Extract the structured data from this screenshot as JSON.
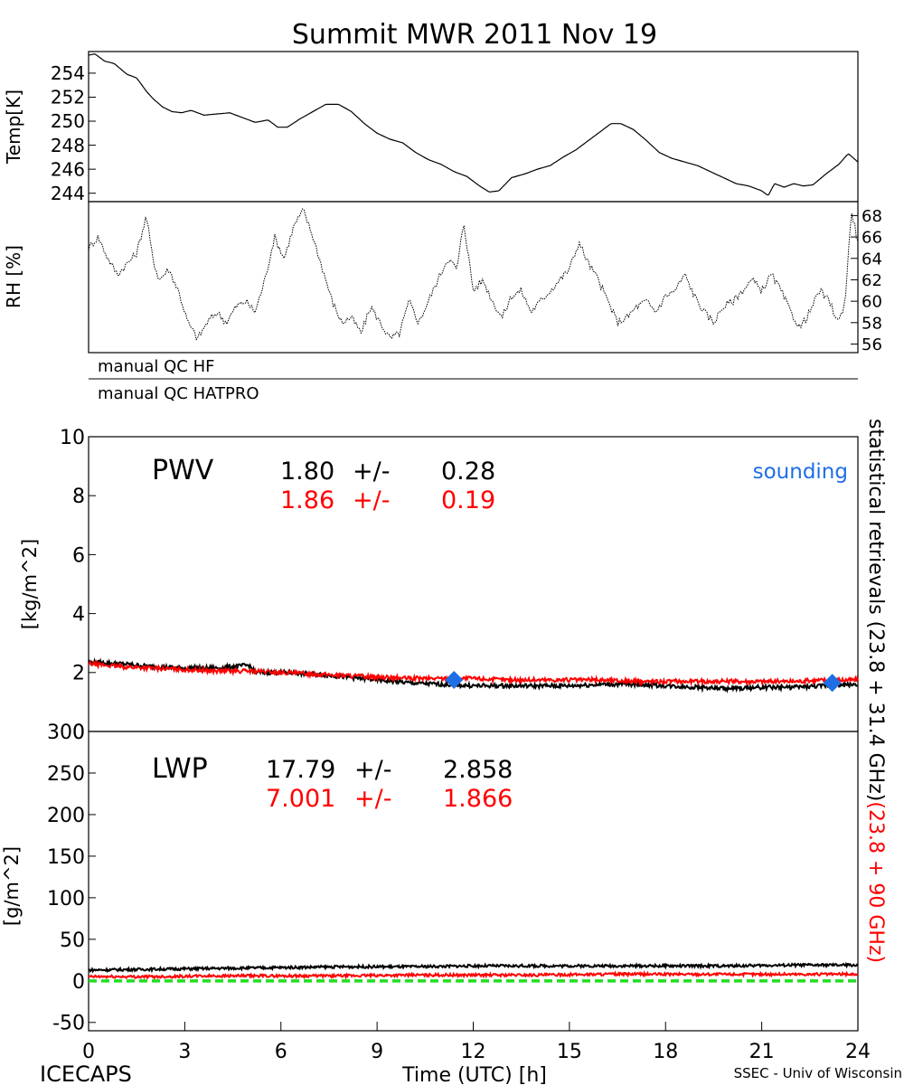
{
  "title": "Summit MWR 2011 Nov 19",
  "footer": {
    "left": "ICECAPS",
    "center": "Time (UTC) [h]",
    "right": "SSEC - Univ of Wisconsin"
  },
  "qc_labels": [
    "manual QC HF",
    "manual QC HATPRO"
  ],
  "side_label": {
    "black": "statistical retrievals (23.8 + 31.4 GHz)",
    "red": "(23.8 + 90 GHz)"
  },
  "legend": {
    "sounding": "sounding"
  },
  "colors": {
    "black_series": "#000000",
    "red_series": "#ff0000",
    "sounding": "#1e6ee6",
    "zero_line": "#22dd22"
  },
  "chart_data": [
    {
      "type": "line",
      "panel": "temperature",
      "ylabel": "Temp[K]",
      "xlim": [
        0,
        24
      ],
      "ylim": [
        243.3,
        255.8
      ],
      "yticks": [
        244,
        246,
        248,
        250,
        252,
        254
      ],
      "series": [
        {
          "color": "#000000",
          "x": [
            0,
            0.2,
            0.5,
            0.8,
            1.2,
            1.5,
            1.8,
            2.0,
            2.3,
            2.6,
            2.9,
            3.2,
            3.6,
            4.0,
            4.4,
            4.8,
            5.2,
            5.6,
            5.9,
            6.2,
            6.6,
            7.0,
            7.4,
            7.8,
            8.2,
            8.6,
            9.0,
            9.4,
            9.8,
            10.2,
            10.6,
            11.0,
            11.4,
            11.8,
            12.2,
            12.5,
            12.8,
            13.2,
            13.6,
            14.0,
            14.4,
            14.8,
            15.2,
            15.6,
            16.0,
            16.3,
            16.6,
            17.0,
            17.4,
            17.8,
            18.2,
            18.6,
            19.0,
            19.4,
            19.8,
            20.2,
            20.6,
            21.0,
            21.2,
            21.4,
            21.7,
            22.0,
            22.3,
            22.6,
            23.0,
            23.4,
            23.7,
            24.0
          ],
          "y": [
            255.5,
            255.6,
            255.0,
            254.8,
            253.9,
            253.6,
            252.5,
            251.9,
            251.2,
            250.8,
            250.7,
            250.9,
            250.5,
            250.6,
            250.7,
            250.3,
            249.9,
            250.1,
            249.5,
            249.5,
            250.2,
            250.8,
            251.4,
            251.4,
            250.8,
            249.8,
            249.0,
            248.5,
            248.2,
            247.4,
            246.8,
            246.4,
            245.8,
            245.4,
            244.6,
            244.1,
            244.2,
            245.3,
            245.6,
            246.0,
            246.3,
            247.0,
            247.6,
            248.4,
            249.2,
            249.8,
            249.8,
            249.3,
            248.4,
            247.4,
            246.9,
            246.6,
            246.3,
            245.8,
            245.3,
            244.8,
            244.6,
            244.2,
            243.8,
            244.8,
            244.5,
            244.8,
            244.6,
            244.7,
            245.6,
            246.4,
            247.3,
            246.6
          ]
        }
      ]
    },
    {
      "type": "line",
      "panel": "relative-humidity",
      "ylabel": "RH [%]",
      "xlim": [
        0,
        24
      ],
      "ylim": [
        55.2,
        69.3
      ],
      "yticks": [
        56,
        58,
        60,
        62,
        64,
        66,
        68
      ],
      "series": [
        {
          "color": "#000000",
          "x": [
            0,
            0.3,
            0.6,
            0.9,
            1.2,
            1.5,
            1.8,
            2.0,
            2.2,
            2.5,
            2.8,
            3.1,
            3.4,
            3.7,
            4.0,
            4.3,
            4.6,
            4.9,
            5.2,
            5.5,
            5.8,
            6.1,
            6.4,
            6.7,
            7.0,
            7.3,
            7.6,
            7.9,
            8.2,
            8.5,
            8.8,
            9.1,
            9.4,
            9.7,
            10.0,
            10.3,
            10.6,
            10.9,
            11.2,
            11.5,
            11.7,
            12.0,
            12.3,
            12.6,
            12.9,
            13.2,
            13.5,
            13.8,
            14.1,
            14.4,
            14.7,
            15.0,
            15.3,
            15.6,
            15.9,
            16.2,
            16.5,
            16.8,
            17.1,
            17.4,
            17.7,
            18.0,
            18.3,
            18.6,
            18.9,
            19.2,
            19.5,
            19.8,
            20.1,
            20.4,
            20.7,
            21.0,
            21.3,
            21.6,
            21.9,
            22.2,
            22.5,
            22.8,
            23.1,
            23.4,
            23.6,
            23.8,
            24.0
          ],
          "y": [
            65.0,
            66.0,
            64.0,
            62.5,
            63.5,
            64.5,
            68.0,
            64.0,
            62.0,
            63.0,
            61.0,
            58.0,
            56.5,
            58.0,
            59.0,
            58.0,
            59.5,
            60.0,
            59.0,
            62.0,
            66.0,
            64.0,
            67.0,
            68.5,
            66.0,
            63.0,
            60.0,
            58.0,
            58.5,
            57.0,
            59.5,
            58.0,
            56.5,
            57.0,
            60.0,
            58.0,
            60.0,
            62.0,
            64.0,
            63.0,
            67.5,
            61.0,
            62.0,
            60.0,
            58.5,
            60.5,
            61.0,
            59.0,
            60.0,
            61.0,
            62.0,
            63.0,
            65.5,
            63.5,
            62.0,
            60.0,
            58.0,
            58.5,
            59.5,
            60.0,
            59.0,
            60.5,
            61.0,
            62.5,
            60.5,
            59.0,
            58.0,
            59.5,
            60.0,
            61.0,
            62.0,
            61.0,
            62.5,
            61.0,
            59.0,
            57.5,
            59.0,
            61.0,
            60.0,
            58.0,
            60.0,
            68.5,
            65.5
          ]
        }
      ]
    },
    {
      "type": "line",
      "panel": "PWV",
      "label": "PWV",
      "ylabel": "[kg/m^2]",
      "xlim": [
        0,
        24
      ],
      "ylim": [
        0,
        10
      ],
      "yticks": [
        0,
        2,
        4,
        6,
        8,
        10
      ],
      "stats": [
        {
          "color": "#000000",
          "mean": "1.80",
          "pm": "+/-",
          "std": "0.28"
        },
        {
          "color": "#ff0000",
          "mean": "1.86",
          "pm": "+/-",
          "std": "0.19"
        }
      ],
      "series": [
        {
          "color": "#000000",
          "x": [
            0,
            1,
            2,
            3,
            4,
            5,
            5.2,
            6,
            7,
            8,
            9,
            10,
            11,
            12,
            13,
            14,
            15,
            16,
            17,
            18,
            19,
            20,
            21,
            22,
            23,
            24
          ],
          "y": [
            2.35,
            2.3,
            2.2,
            2.15,
            2.15,
            2.25,
            2.0,
            2.0,
            1.95,
            1.85,
            1.75,
            1.65,
            1.6,
            1.55,
            1.55,
            1.55,
            1.55,
            1.6,
            1.6,
            1.55,
            1.5,
            1.45,
            1.5,
            1.5,
            1.55,
            1.6
          ]
        },
        {
          "color": "#ff0000",
          "x": [
            0,
            1,
            2,
            3,
            4,
            5,
            6,
            7,
            8,
            9,
            10,
            11,
            12,
            13,
            14,
            15,
            16,
            17,
            18,
            19,
            20,
            21,
            22,
            23,
            24
          ],
          "y": [
            2.3,
            2.2,
            2.15,
            2.1,
            2.05,
            2.05,
            2.0,
            1.95,
            1.9,
            1.85,
            1.8,
            1.8,
            1.8,
            1.75,
            1.75,
            1.75,
            1.75,
            1.7,
            1.7,
            1.7,
            1.7,
            1.7,
            1.7,
            1.75,
            1.75
          ]
        }
      ],
      "sounding_points": {
        "x": [
          11.4,
          23.2
        ],
        "y": [
          1.75,
          1.65
        ]
      }
    },
    {
      "type": "line",
      "panel": "LWP",
      "label": "LWP",
      "ylabel": "[g/m^2]",
      "xlabel": "Time (UTC) [h]",
      "xlim": [
        0,
        24
      ],
      "ylim": [
        -60,
        300
      ],
      "yticks": [
        -50,
        0,
        50,
        100,
        150,
        200,
        250,
        300
      ],
      "xticks": [
        0,
        3,
        6,
        9,
        12,
        15,
        18,
        21,
        24
      ],
      "stats": [
        {
          "color": "#000000",
          "mean": "17.79",
          "pm": "+/-",
          "std": "2.858"
        },
        {
          "color": "#ff0000",
          "mean": "7.001",
          "pm": "+/-",
          "std": "1.866"
        }
      ],
      "series": [
        {
          "color": "#000000",
          "x": [
            0,
            2,
            4,
            6,
            8,
            10,
            12,
            14,
            16,
            18,
            20,
            22,
            24
          ],
          "y": [
            13,
            14,
            15,
            16,
            17,
            17,
            18,
            18,
            18,
            18,
            18,
            19,
            19
          ]
        },
        {
          "color": "#ff0000",
          "x": [
            0,
            2,
            4,
            6,
            8,
            10,
            12,
            14,
            16,
            18,
            20,
            22,
            24
          ],
          "y": [
            5,
            5,
            6,
            6,
            6,
            7,
            7,
            7,
            8,
            8,
            8,
            8,
            8
          ]
        }
      ],
      "zero_line": 0
    }
  ]
}
